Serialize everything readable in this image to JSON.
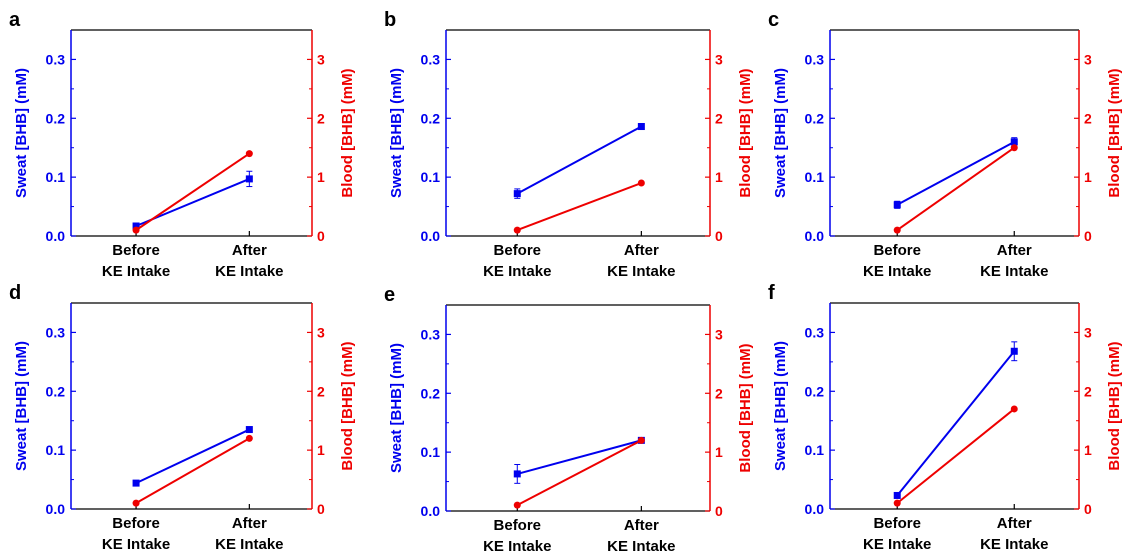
{
  "colors": {
    "sweat": "#0000ee",
    "blood": "#ee0000",
    "axis": "#000000"
  },
  "shared": {
    "ylabel_left": "Sweat [BHB] (mM)",
    "ylabel_right": "Blood [BHB] (mM)",
    "xtick_line1": [
      "Before",
      "After"
    ],
    "xtick_line2": [
      "KE Intake",
      "KE Intake"
    ],
    "yticks_left": [
      "0.0",
      "0.1",
      "0.2",
      "0.3"
    ],
    "yticks_right": [
      "0",
      "1",
      "2",
      "3"
    ]
  },
  "chart_data": [
    {
      "panel": "a",
      "type": "line",
      "categories": [
        "Before KE Intake",
        "After KE Intake"
      ],
      "ylim_left": [
        0,
        0.35
      ],
      "ylim_right": [
        0,
        3.5
      ],
      "series": [
        {
          "name": "Sweat [BHB] (mM)",
          "axis": "left",
          "marker": "square",
          "values": [
            0.017,
            0.097
          ],
          "errors": [
            0.003,
            0.013
          ]
        },
        {
          "name": "Blood [BHB] (mM)",
          "axis": "right",
          "marker": "circle",
          "values": [
            0.1,
            1.4
          ],
          "errors": [
            0,
            0
          ]
        }
      ]
    },
    {
      "panel": "b",
      "type": "line",
      "categories": [
        "Before KE Intake",
        "After KE Intake"
      ],
      "ylim_left": [
        0,
        0.35
      ],
      "ylim_right": [
        0,
        3.5
      ],
      "series": [
        {
          "name": "Sweat [BHB] (mM)",
          "axis": "left",
          "marker": "square",
          "values": [
            0.072,
            0.186
          ],
          "errors": [
            0.008,
            0.005
          ]
        },
        {
          "name": "Blood [BHB] (mM)",
          "axis": "right",
          "marker": "circle",
          "values": [
            0.1,
            0.9
          ],
          "errors": [
            0,
            0
          ]
        }
      ]
    },
    {
      "panel": "c",
      "type": "line",
      "categories": [
        "Before KE Intake",
        "After KE Intake"
      ],
      "ylim_left": [
        0,
        0.35
      ],
      "ylim_right": [
        0,
        3.5
      ],
      "series": [
        {
          "name": "Sweat [BHB] (mM)",
          "axis": "left",
          "marker": "square",
          "values": [
            0.053,
            0.16
          ],
          "errors": [
            0.006,
            0.007
          ]
        },
        {
          "name": "Blood [BHB] (mM)",
          "axis": "right",
          "marker": "circle",
          "values": [
            0.1,
            1.5
          ],
          "errors": [
            0,
            0
          ]
        }
      ]
    },
    {
      "panel": "d",
      "type": "line",
      "categories": [
        "Before KE Intake",
        "After KE Intake"
      ],
      "ylim_left": [
        0,
        0.35
      ],
      "ylim_right": [
        0,
        3.5
      ],
      "series": [
        {
          "name": "Sweat [BHB] (mM)",
          "axis": "left",
          "marker": "square",
          "values": [
            0.044,
            0.135
          ],
          "errors": [
            0.004,
            0.002
          ]
        },
        {
          "name": "Blood [BHB] (mM)",
          "axis": "right",
          "marker": "circle",
          "values": [
            0.1,
            1.2
          ],
          "errors": [
            0,
            0
          ]
        }
      ]
    },
    {
      "panel": "e",
      "type": "line",
      "categories": [
        "Before KE Intake",
        "After KE Intake"
      ],
      "ylim_left": [
        0,
        0.35
      ],
      "ylim_right": [
        0,
        3.5
      ],
      "series": [
        {
          "name": "Sweat [BHB] (mM)",
          "axis": "left",
          "marker": "square",
          "values": [
            0.063,
            0.12
          ],
          "errors": [
            0.016,
            0.003
          ]
        },
        {
          "name": "Blood [BHB] (mM)",
          "axis": "right",
          "marker": "circle",
          "values": [
            0.1,
            1.2
          ],
          "errors": [
            0,
            0
          ]
        }
      ]
    },
    {
      "panel": "f",
      "type": "line",
      "categories": [
        "Before KE Intake",
        "After KE Intake"
      ],
      "ylim_left": [
        0,
        0.35
      ],
      "ylim_right": [
        0,
        3.5
      ],
      "series": [
        {
          "name": "Sweat [BHB] (mM)",
          "axis": "left",
          "marker": "square",
          "values": [
            0.023,
            0.268
          ],
          "errors": [
            0.002,
            0.016
          ]
        },
        {
          "name": "Blood [BHB] (mM)",
          "axis": "right",
          "marker": "circle",
          "values": [
            0.1,
            1.7
          ],
          "errors": [
            0,
            0
          ]
        }
      ]
    }
  ]
}
